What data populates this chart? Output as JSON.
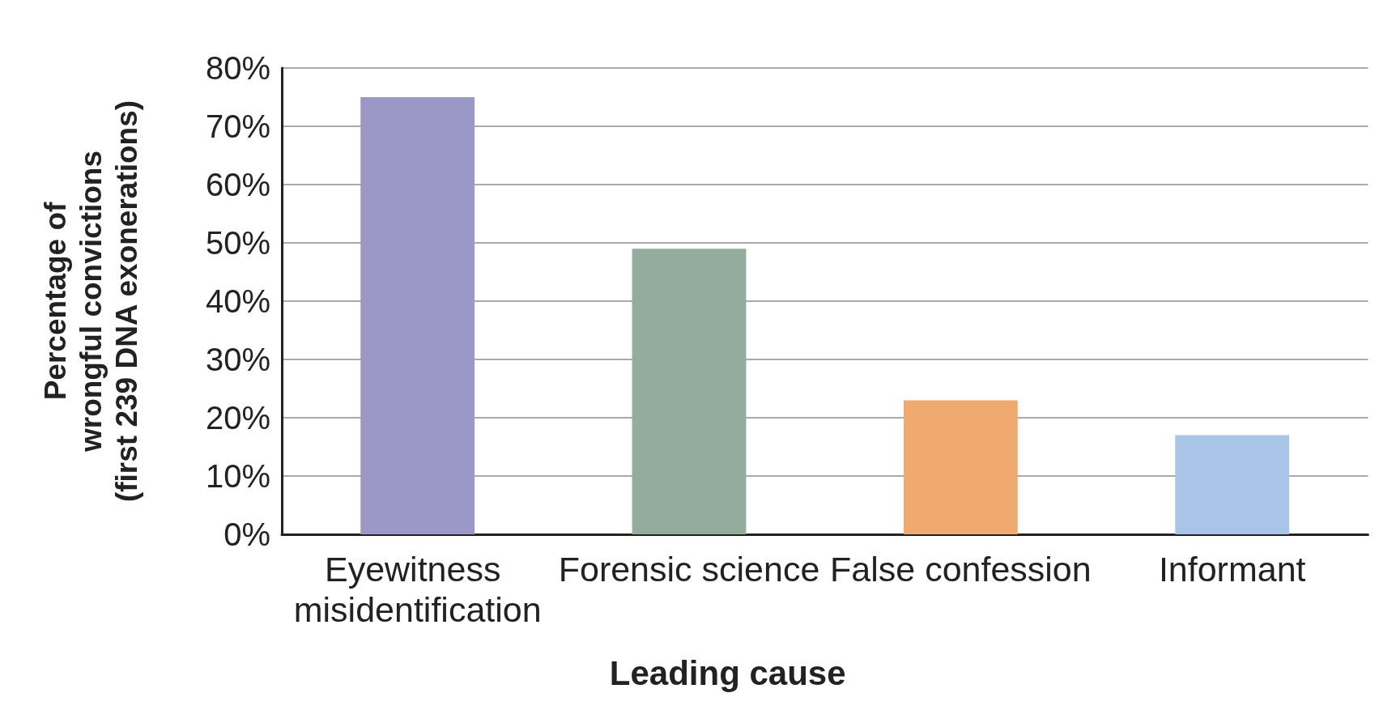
{
  "chart_data": {
    "type": "bar",
    "xlabel": "Leading cause",
    "ylabel": "Percentage of\nwrongful convictions\n(first 239 DNA exonerations)",
    "categories": [
      "Eyewitness misidentification",
      "Forensic science",
      "False confession",
      "Informant"
    ],
    "values": [
      75,
      49,
      23,
      17
    ],
    "colors": [
      "#9b98c8",
      "#93ad9d",
      "#f0a96e",
      "#a9c4e6"
    ],
    "ylim": [
      0,
      80
    ],
    "yticks": [
      {
        "value": 0,
        "label": "0%"
      },
      {
        "value": 10,
        "label": "10%"
      },
      {
        "value": 20,
        "label": "20%"
      },
      {
        "value": 30,
        "label": "30%"
      },
      {
        "value": 40,
        "label": "40%"
      },
      {
        "value": 50,
        "label": "50%"
      },
      {
        "value": 60,
        "label": "60%"
      },
      {
        "value": 70,
        "label": "70%"
      },
      {
        "value": 80,
        "label": "80%"
      }
    ],
    "grid": "y"
  }
}
